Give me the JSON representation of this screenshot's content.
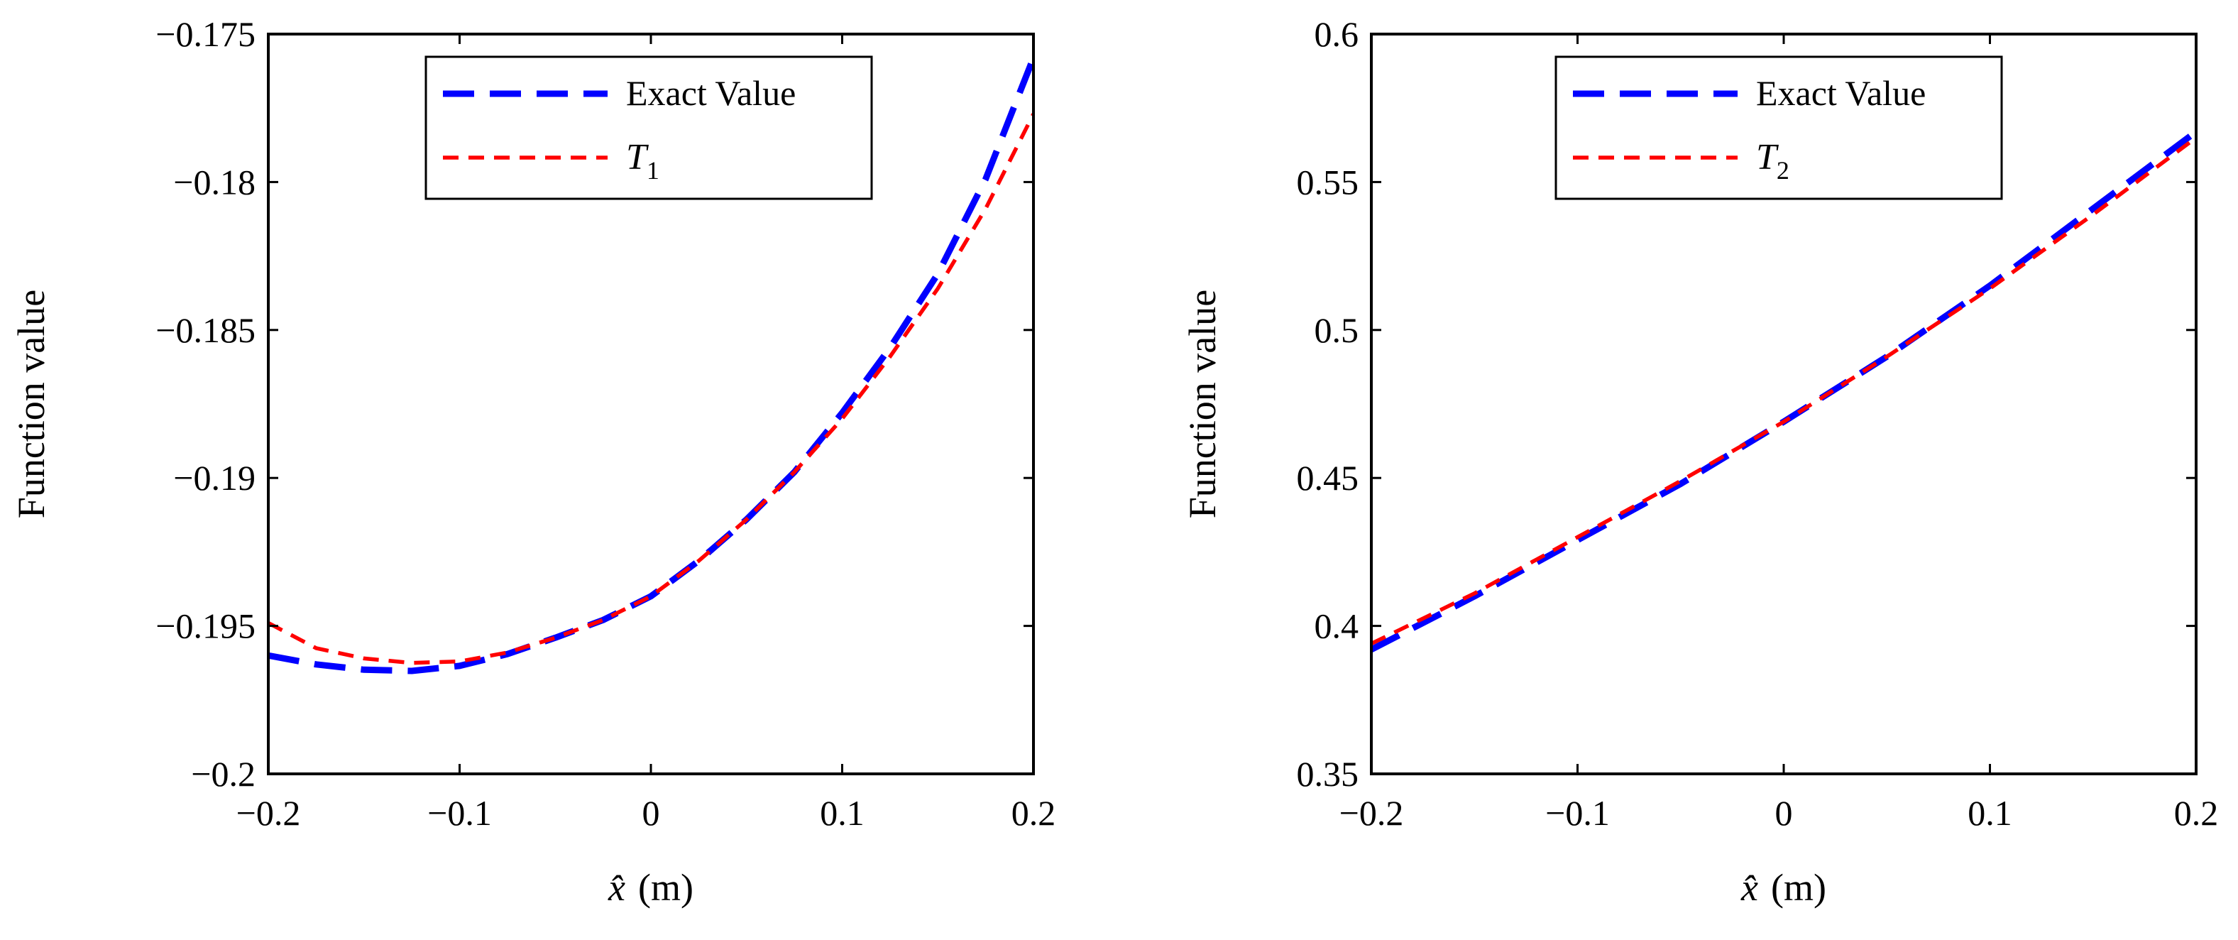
{
  "chart_data": [
    {
      "type": "line",
      "xlabel_main": "x̂",
      "xlabel_unit": "(m)",
      "ylabel": "Function value",
      "xlim": [
        -0.2,
        0.2
      ],
      "ylim": [
        -0.2,
        -0.175
      ],
      "xticks": [
        -0.2,
        -0.1,
        0,
        0.1,
        0.2
      ],
      "xtick_labels": [
        "−0.2",
        "−0.1",
        "0",
        "0.1",
        "0.2"
      ],
      "yticks": [
        -0.2,
        -0.195,
        -0.19,
        -0.185,
        -0.18,
        -0.175
      ],
      "ytick_labels": [
        "−0.2",
        "−0.195",
        "−0.19",
        "−0.185",
        "−0.18",
        "−0.175"
      ],
      "legend_position": "top-right",
      "series": [
        {
          "name": "Exact Value",
          "color": "#0000ff",
          "style": "long-dash",
          "x": [
            -0.2,
            -0.175,
            -0.15,
            -0.125,
            -0.1,
            -0.075,
            -0.05,
            -0.025,
            0,
            0.025,
            0.05,
            0.075,
            0.1,
            0.125,
            0.15,
            0.175,
            0.2
          ],
          "y": [
            -0.196,
            -0.1963,
            -0.19648,
            -0.19652,
            -0.19635,
            -0.19595,
            -0.1954,
            -0.1948,
            -0.194,
            -0.1928,
            -0.1914,
            -0.1898,
            -0.1878,
            -0.1856,
            -0.1831,
            -0.1799,
            -0.1758
          ]
        },
        {
          "name": "T",
          "subscript": "1",
          "color": "#ff0000",
          "style": "short-dash",
          "x": [
            -0.2,
            -0.175,
            -0.15,
            -0.125,
            -0.1,
            -0.075,
            -0.05,
            -0.025,
            0,
            0.025,
            0.05,
            0.075,
            0.1,
            0.125,
            0.15,
            0.175,
            0.2
          ],
          "y": [
            -0.1949,
            -0.19575,
            -0.1961,
            -0.19625,
            -0.1962,
            -0.1959,
            -0.1954,
            -0.1948,
            -0.194,
            -0.1928,
            -0.1914,
            -0.1898,
            -0.188,
            -0.1859,
            -0.1836,
            -0.1809,
            -0.1777
          ]
        }
      ]
    },
    {
      "type": "line",
      "xlabel_main": "x̂",
      "xlabel_unit": "(m)",
      "ylabel": "Function value",
      "xlim": [
        -0.2,
        0.2
      ],
      "ylim": [
        0.35,
        0.6
      ],
      "xticks": [
        -0.2,
        -0.1,
        0,
        0.1,
        0.2
      ],
      "xtick_labels": [
        "−0.2",
        "−0.1",
        "0",
        "0.1",
        "0.2"
      ],
      "yticks": [
        0.35,
        0.4,
        0.45,
        0.5,
        0.55,
        0.6
      ],
      "ytick_labels": [
        "0.35",
        "0.4",
        "0.45",
        "0.5",
        "0.55",
        "0.6"
      ],
      "legend_position": "top-right",
      "series": [
        {
          "name": "Exact Value",
          "color": "#0000ff",
          "style": "long-dash",
          "x": [
            -0.2,
            -0.15,
            -0.1,
            -0.05,
            0,
            0.05,
            0.1,
            0.15,
            0.2
          ],
          "y": [
            0.392,
            0.41,
            0.429,
            0.448,
            0.469,
            0.491,
            0.515,
            0.541,
            0.567
          ]
        },
        {
          "name": "T",
          "subscript": "2",
          "color": "#ff0000",
          "style": "short-dash",
          "x": [
            -0.2,
            -0.15,
            -0.1,
            -0.05,
            0,
            0.05,
            0.1,
            0.15,
            0.2
          ],
          "y": [
            0.394,
            0.411,
            0.43,
            0.449,
            0.469,
            0.491,
            0.514,
            0.539,
            0.565
          ]
        }
      ]
    }
  ]
}
